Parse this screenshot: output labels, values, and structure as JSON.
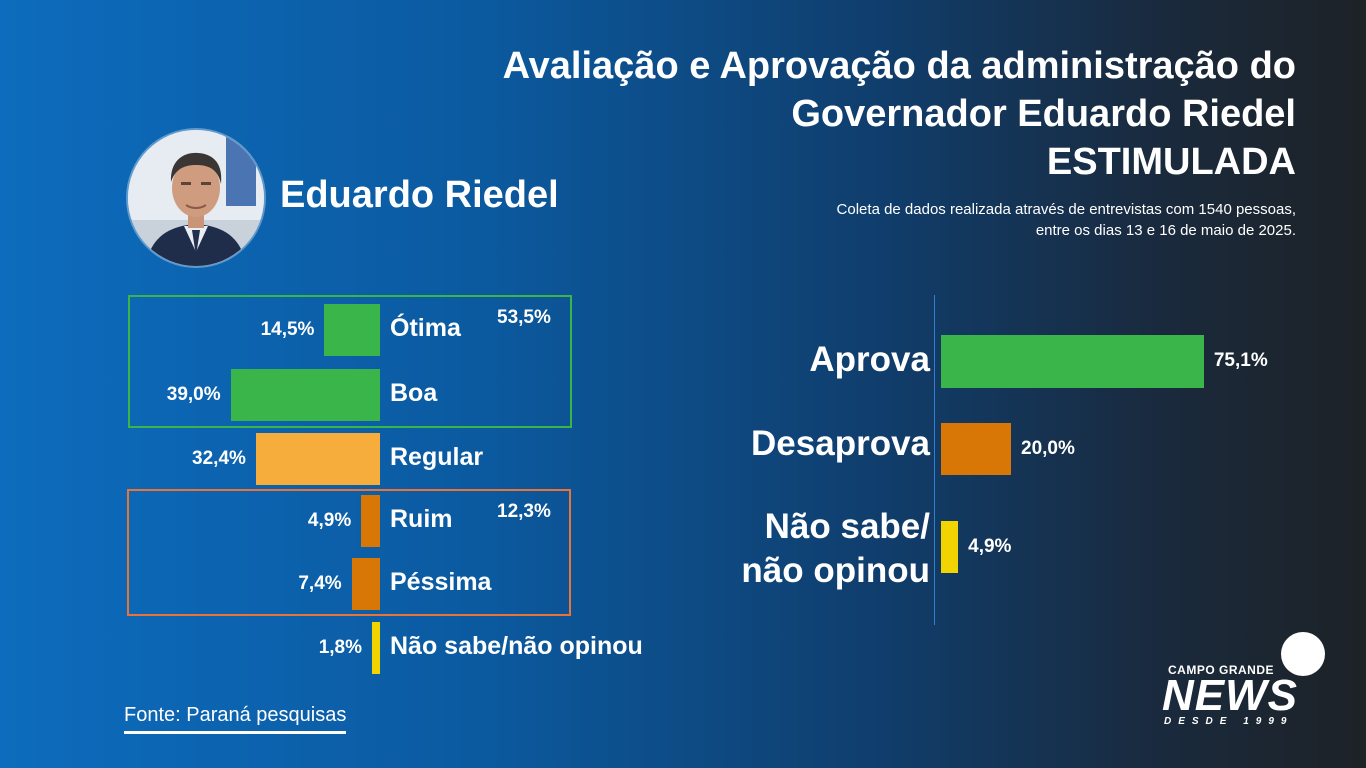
{
  "title": {
    "line1": "Avaliação e Aprovação da administração do",
    "line2": "Governador Eduardo Riedel",
    "line3": "ESTIMULADA"
  },
  "subtitle": {
    "line1": "Coleta de dados realizada através de entrevistas com 1540 pessoas,",
    "line2": "entre os dias 13 e 16 de maio de 2025."
  },
  "person_name": "Eduardo Riedel",
  "source": "Fonte: Paraná pesquisas",
  "logo": {
    "top": "CAMPO GRANDE",
    "main": "NEWS",
    "sub": "DESDE 1999"
  },
  "colors": {
    "green": "#3ab54a",
    "light_orange": "#f7ad3c",
    "dark_orange": "#d97706",
    "yellow": "#f2d400",
    "green_box": "#3ab54a",
    "orange_box": "#e8743a"
  },
  "chart_data": [
    {
      "type": "bar",
      "orientation": "horizontal",
      "categories": [
        "Ótima",
        "Boa",
        "Regular",
        "Ruim",
        "Péssima",
        "Não sabe/não opinou"
      ],
      "values": [
        14.5,
        39.0,
        32.4,
        4.9,
        7.4,
        1.8
      ],
      "value_labels": [
        "14,5%",
        "39,0%",
        "32,4%",
        "4,9%",
        "7,4%",
        "1,8%"
      ],
      "bar_colors": [
        "#3ab54a",
        "#3ab54a",
        "#f7ad3c",
        "#d97706",
        "#d97706",
        "#f2d400"
      ],
      "groups": [
        {
          "members": [
            "Ótima",
            "Boa"
          ],
          "total": "53,5%",
          "color": "#3ab54a"
        },
        {
          "members": [
            "Ruim",
            "Péssima"
          ],
          "total": "12,3%",
          "color": "#e8743a"
        }
      ],
      "xlim": [
        0,
        40
      ]
    },
    {
      "type": "bar",
      "orientation": "horizontal",
      "categories": [
        "Aprova",
        "Desaprova",
        "Não sabe/ não opinou"
      ],
      "category_lines": [
        [
          "Aprova"
        ],
        [
          "Desaprova"
        ],
        [
          "Não sabe/",
          "não opinou"
        ]
      ],
      "values": [
        75.1,
        20.0,
        4.9
      ],
      "value_labels": [
        "75,1%",
        "20,0%",
        "4,9%"
      ],
      "bar_colors": [
        "#3ab54a",
        "#d97706",
        "#f2d400"
      ],
      "xlim": [
        0,
        80
      ]
    }
  ]
}
